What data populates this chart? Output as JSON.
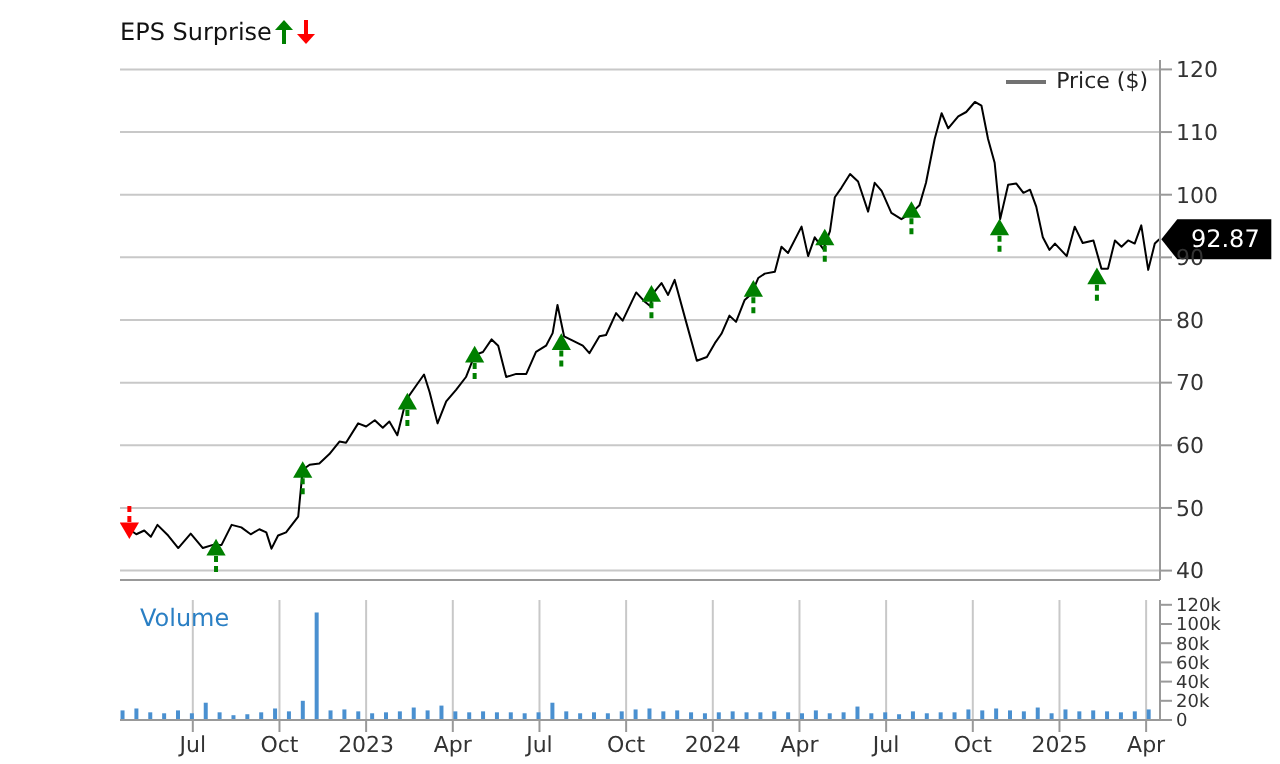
{
  "chart_data": [
    {
      "type": "line",
      "legend_title": "EPS Surprise",
      "legend": "top right",
      "grid": true,
      "tick_labels": "y",
      "xlim": [
        2022.29,
        2025.29
      ],
      "xticks": [
        {
          "value": 2022.5,
          "label": null
        },
        {
          "value": 2022.75,
          "label": null
        },
        {
          "value": 2023,
          "label": null
        },
        {
          "value": 2023.25,
          "label": null
        },
        {
          "value": 2023.5,
          "label": null
        },
        {
          "value": 2023.75,
          "label": null
        },
        {
          "value": 2024,
          "label": null
        },
        {
          "value": 2024.25,
          "label": null
        },
        {
          "value": 2024.5,
          "label": null
        },
        {
          "value": 2024.75,
          "label": null
        },
        {
          "value": 2025,
          "label": null
        },
        {
          "value": 2025.25,
          "label": null
        }
      ],
      "ylim": [
        38.5,
        121.5
      ],
      "yticks": [
        40,
        50,
        60,
        70,
        80,
        90,
        100,
        110,
        120
      ],
      "annotations": [
        {
          "text": "92.87",
          "x": 2025.288,
          "y": 92.87
        }
      ],
      "series": [
        {
          "name": "Price ($)",
          "color": "#000000",
          "x": [
            2022.317,
            2022.337,
            2022.36,
            2022.379,
            2022.398,
            2022.429,
            2022.458,
            2022.494,
            2022.529,
            2022.558,
            2022.583,
            2022.612,
            2022.64,
            2022.667,
            2022.692,
            2022.712,
            2022.727,
            2022.746,
            2022.769,
            2022.804,
            2022.817,
            2022.837,
            2022.865,
            2022.894,
            2022.923,
            2022.942,
            2022.977,
            2023.0,
            2023.025,
            2023.048,
            2023.067,
            2023.09,
            2023.115,
            2023.144,
            2023.167,
            2023.183,
            2023.206,
            2023.231,
            2023.26,
            2023.288,
            2023.313,
            2023.337,
            2023.362,
            2023.381,
            2023.404,
            2023.433,
            2023.462,
            2023.49,
            2023.519,
            2023.538,
            2023.552,
            2023.571,
            2023.596,
            2023.625,
            2023.644,
            2023.673,
            2023.692,
            2023.721,
            2023.74,
            2023.779,
            2023.804,
            2023.82,
            2023.827,
            2023.852,
            2023.871,
            2023.89,
            2023.923,
            2023.954,
            2023.983,
            2024.006,
            2024.025,
            2024.048,
            2024.067,
            2024.092,
            2024.112,
            2024.131,
            2024.15,
            2024.179,
            2024.198,
            2024.217,
            2024.256,
            2024.275,
            2024.294,
            2024.319,
            2024.338,
            2024.352,
            2024.371,
            2024.396,
            2024.419,
            2024.448,
            2024.467,
            2024.487,
            2024.515,
            2024.544,
            2024.573,
            2024.596,
            2024.615,
            2024.64,
            2024.66,
            2024.679,
            2024.708,
            2024.731,
            2024.756,
            2024.775,
            2024.794,
            2024.813,
            2024.829,
            2024.852,
            2024.875,
            2024.896,
            2024.915,
            2024.933,
            2024.952,
            2024.971,
            2024.987,
            2025.021,
            2025.044,
            2025.067,
            2025.098,
            2025.121,
            2025.14,
            2025.16,
            2025.179,
            2025.198,
            2025.217,
            2025.236,
            2025.256,
            2025.275,
            2025.288
          ],
          "values": [
            46.6,
            45.8,
            46.4,
            45.4,
            47.3,
            45.6,
            43.6,
            45.9,
            43.6,
            44.1,
            44.1,
            47.3,
            46.9,
            45.8,
            46.6,
            46.1,
            43.5,
            45.6,
            46.1,
            48.6,
            56.1,
            56.9,
            57.1,
            58.6,
            60.6,
            60.4,
            63.5,
            63.0,
            64.0,
            62.8,
            63.8,
            61.6,
            67.2,
            69.5,
            71.3,
            68.5,
            63.5,
            67.0,
            68.9,
            70.9,
            74.4,
            74.9,
            76.9,
            75.9,
            70.9,
            71.4,
            71.4,
            74.9,
            75.9,
            77.9,
            82.4,
            77.4,
            76.7,
            75.9,
            74.7,
            77.4,
            77.6,
            81.1,
            79.9,
            84.4,
            82.9,
            82.2,
            84.2,
            85.9,
            84.0,
            86.4,
            79.7,
            73.5,
            74.1,
            76.3,
            77.8,
            80.7,
            79.7,
            83.2,
            84.2,
            86.7,
            87.4,
            87.7,
            91.7,
            90.7,
            94.9,
            90.2,
            93.2,
            91.3,
            94.2,
            99.6,
            101.1,
            103.3,
            102.1,
            97.3,
            101.9,
            100.6,
            97.1,
            96.1,
            97.1,
            98.3,
            101.9,
            108.9,
            113.0,
            110.6,
            112.5,
            113.2,
            114.8,
            114.2,
            108.9,
            105.1,
            96.1,
            101.6,
            101.8,
            100.3,
            100.8,
            98.1,
            93.2,
            91.2,
            92.2,
            90.2,
            94.9,
            92.3,
            92.7,
            88.2,
            88.2,
            92.7,
            91.7,
            92.7,
            92.2,
            95.1,
            88.0,
            92.2,
            92.9
          ]
        },
        {
          "type": "scatter",
          "color": "#008000",
          "marker": "triangle",
          "x": [
            2022.567,
            2022.817,
            2023.119,
            2023.313,
            2023.563,
            2023.823,
            2024.117,
            2024.323,
            2024.573,
            2024.827,
            2025.108
          ],
          "values": [
            43.3,
            55.7,
            66.6,
            74.1,
            76.1,
            83.8,
            84.6,
            92.8,
            97.2,
            94.4,
            86.6
          ]
        },
        {
          "type": "scatter",
          "color": "#ff0000",
          "x": [
            2022.317
          ],
          "values": [
            46.8
          ]
        }
      ]
    },
    {
      "type": "bar",
      "color": "#4a90d0",
      "grid": "x",
      "annotations": [
        "Volume"
      ],
      "xlim": [
        2022.29,
        2025.29
      ],
      "xticks": [
        {
          "value": 2022.5,
          "label": "Jul"
        },
        {
          "value": 2022.75,
          "label": "Oct"
        },
        {
          "value": 2023,
          "label": "2023"
        },
        {
          "value": 2023.25,
          "label": "Apr"
        },
        {
          "value": 2023.5,
          "label": "Jul"
        },
        {
          "value": 2023.75,
          "label": "Oct"
        },
        {
          "value": 2024,
          "label": "2024"
        },
        {
          "value": 2024.25,
          "label": "Apr"
        },
        {
          "value": 2024.5,
          "label": "Jul"
        },
        {
          "value": 2024.75,
          "label": "Oct"
        },
        {
          "value": 2025,
          "label": "2025"
        },
        {
          "value": 2025.25,
          "label": "Apr"
        }
      ],
      "ylim": [
        0,
        125000
      ],
      "yticks": [
        0,
        {
          "value": 20000,
          "label": "20k"
        },
        {
          "value": 40000,
          "label": "40k"
        },
        {
          "value": 60000,
          "label": "60k"
        },
        {
          "value": 80000,
          "label": "80k"
        },
        {
          "value": 100000,
          "label": "100k"
        },
        {
          "value": 120000,
          "label": "120k"
        }
      ],
      "x": [
        2022.3,
        2022.34,
        2022.38,
        2022.42,
        2022.46,
        2022.5,
        2022.54,
        2022.58,
        2022.62,
        2022.66,
        2022.7,
        2022.74,
        2022.78,
        2022.82,
        2022.86,
        2022.9,
        2022.94,
        2022.98,
        2023.02,
        2023.06,
        2023.1,
        2023.14,
        2023.18,
        2023.22,
        2023.26,
        2023.3,
        2023.34,
        2023.38,
        2023.42,
        2023.46,
        2023.5,
        2023.54,
        2023.58,
        2023.62,
        2023.66,
        2023.7,
        2023.74,
        2023.78,
        2023.82,
        2023.86,
        2023.9,
        2023.94,
        2023.98,
        2024.02,
        2024.06,
        2024.1,
        2024.14,
        2024.18,
        2024.22,
        2024.26,
        2024.3,
        2024.34,
        2024.38,
        2024.42,
        2024.46,
        2024.5,
        2024.54,
        2024.58,
        2024.62,
        2024.66,
        2024.7,
        2024.74,
        2024.78,
        2024.82,
        2024.86,
        2024.9,
        2024.94,
        2024.98,
        2025.02,
        2025.06,
        2025.1,
        2025.14,
        2025.18,
        2025.22,
        2025.26
      ],
      "values": [
        10000,
        12000,
        8000,
        7000,
        10000,
        7000,
        18000,
        8000,
        5000,
        6000,
        8000,
        12000,
        9000,
        20000,
        112000,
        10000,
        11000,
        9000,
        7000,
        8000,
        9000,
        13000,
        10000,
        15000,
        9000,
        8000,
        9000,
        8000,
        8000,
        7000,
        8000,
        18000,
        9000,
        7000,
        8000,
        7000,
        9000,
        11000,
        12000,
        9000,
        10000,
        8000,
        7000,
        8000,
        9000,
        8000,
        8000,
        9000,
        8000,
        7000,
        10000,
        7000,
        8000,
        14000,
        7000,
        8000,
        6000,
        9000,
        7000,
        8000,
        8000,
        11000,
        10000,
        12000,
        10000,
        9000,
        13000,
        7000,
        11000,
        9000,
        10000,
        9000,
        8000,
        9000,
        11000
      ]
    }
  ]
}
